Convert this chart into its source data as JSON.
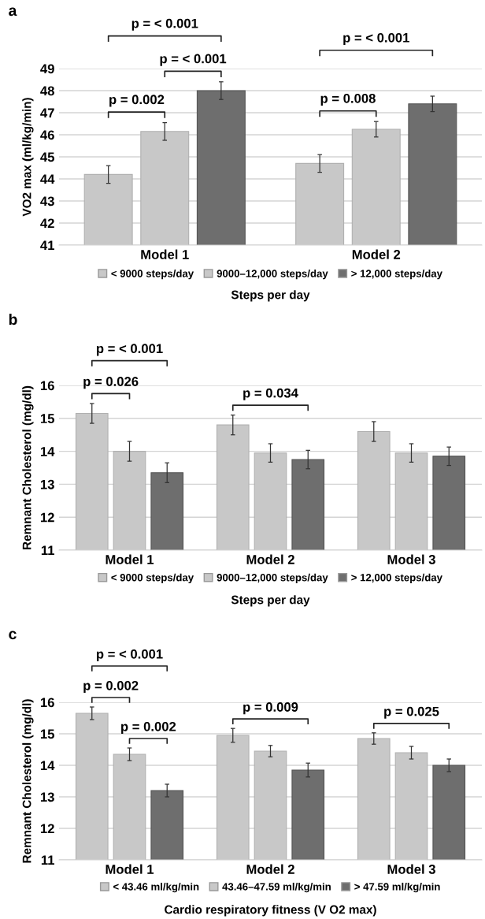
{
  "chart_data": [
    {
      "type": "bar",
      "title": "a",
      "xlabel": "Steps per day",
      "ylabel": "VO2 max (ml/kg/min)",
      "categories": [
        "Model 1",
        "Model 2"
      ],
      "series": [
        {
          "name": "< 9000 steps/day",
          "color": "#c8c8c8",
          "values": [
            44.2,
            44.7
          ],
          "errors": [
            0.4,
            0.4
          ]
        },
        {
          "name": "9000–12,000 steps/day",
          "color": "#c8c8c8",
          "values": [
            46.15,
            46.25
          ],
          "errors": [
            0.4,
            0.35
          ]
        },
        {
          "name": "> 12,000 steps/day",
          "color": "#6e6e6e",
          "values": [
            48.0,
            47.4
          ],
          "errors": [
            0.4,
            0.35
          ]
        }
      ],
      "ylim": [
        41,
        49
      ],
      "yticks": [
        41,
        42,
        43,
        44,
        45,
        46,
        47,
        48,
        49
      ],
      "grid": "y",
      "legend": "bottom",
      "annotations": [
        "p = 0.002",
        "p = < 0.001",
        "p = < 0.001",
        "p = 0.008",
        "p = < 0.001"
      ]
    },
    {
      "type": "bar",
      "title": "b",
      "xlabel": "Steps per day",
      "ylabel": "Remnant Cholesterol (mg/dl)",
      "categories": [
        "Model 1",
        "Model 2",
        "Model 3"
      ],
      "series": [
        {
          "name": "< 9000 steps/day",
          "color": "#c8c8c8",
          "values": [
            15.15,
            14.8,
            14.6
          ],
          "errors": [
            0.3,
            0.3,
            0.3
          ]
        },
        {
          "name": "9000–12,000 steps/day",
          "color": "#c8c8c8",
          "values": [
            14.0,
            13.95,
            13.95
          ],
          "errors": [
            0.3,
            0.28,
            0.28
          ]
        },
        {
          "name": "> 12,000 steps/day",
          "color": "#6e6e6e",
          "values": [
            13.35,
            13.75,
            13.85
          ],
          "errors": [
            0.3,
            0.28,
            0.28
          ]
        }
      ],
      "ylim": [
        11,
        16
      ],
      "yticks": [
        11,
        12,
        13,
        14,
        15,
        16
      ],
      "grid": "y",
      "legend": "bottom",
      "annotations": [
        "p = 0.026",
        "p = < 0.001",
        "p = 0.034"
      ]
    },
    {
      "type": "bar",
      "title": "c",
      "xlabel": "Cardio respiratory fitness (V O2 max)",
      "ylabel": "Remnant Cholesterol (mg/dl)",
      "categories": [
        "Model 1",
        "Model 2",
        "Model 3"
      ],
      "series": [
        {
          "name": "< 43.46 ml/kg/min",
          "color": "#c8c8c8",
          "values": [
            15.65,
            14.95,
            14.85
          ],
          "errors": [
            0.2,
            0.22,
            0.18
          ]
        },
        {
          "name": "43.46–47.59 ml/kg/min",
          "color": "#c8c8c8",
          "values": [
            14.35,
            14.45,
            14.4
          ],
          "errors": [
            0.2,
            0.18,
            0.2
          ]
        },
        {
          "name": "> 47.59 ml/kg/min",
          "color": "#6e6e6e",
          "values": [
            13.2,
            13.85,
            14.0
          ],
          "errors": [
            0.2,
            0.22,
            0.2
          ]
        }
      ],
      "ylim": [
        11,
        16
      ],
      "yticks": [
        11,
        12,
        13,
        14,
        15,
        16
      ],
      "grid": "y",
      "legend": "bottom",
      "annotations": [
        "p = 0.002",
        "p = < 0.001",
        "p = 0.002",
        "p = 0.009",
        "p = 0.025"
      ]
    }
  ]
}
